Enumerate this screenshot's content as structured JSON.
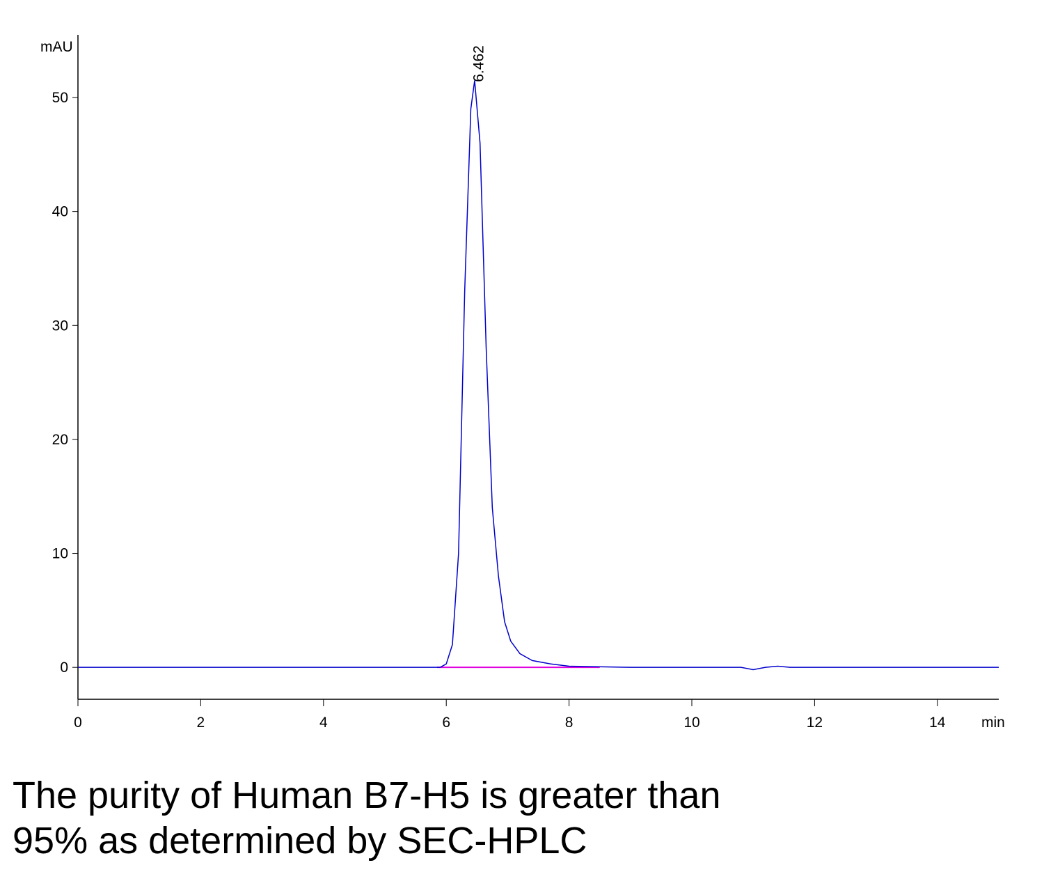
{
  "chart_data": {
    "type": "line",
    "y_label": "mAU",
    "x_label": "min",
    "x": [
      0,
      1,
      2,
      3,
      4,
      5,
      5.5,
      5.8,
      5.9,
      6.0,
      6.1,
      6.2,
      6.3,
      6.4,
      6.462,
      6.55,
      6.65,
      6.75,
      6.85,
      6.95,
      7.05,
      7.2,
      7.4,
      7.7,
      8,
      9,
      10,
      10.8,
      11.0,
      11.2,
      11.4,
      11.6,
      12,
      13,
      14,
      15
    ],
    "series": [
      {
        "color": "#0000cc",
        "values": [
          0,
          0,
          0,
          0,
          0,
          0,
          0,
          0,
          0,
          0.3,
          2,
          10,
          33,
          49,
          51.5,
          46,
          28,
          14,
          8,
          4,
          2.3,
          1.2,
          0.6,
          0.3,
          0.1,
          0,
          0,
          0,
          -0.2,
          0,
          0.1,
          0,
          0,
          0,
          0,
          0
        ]
      }
    ],
    "baseline": {
      "x": [
        5.85,
        8.5
      ],
      "values": [
        0,
        0
      ],
      "color": "#e000e0"
    },
    "annotations": [
      {
        "text": "6.462",
        "x": 6.462,
        "y": 51.5
      }
    ],
    "xlim": [
      0,
      15
    ],
    "ylim": [
      -2.8,
      55.5
    ],
    "xticks": [
      0,
      2,
      4,
      6,
      8,
      10,
      12,
      14
    ],
    "yticks": [
      0,
      10,
      20,
      30,
      40,
      50
    ]
  },
  "caption": [
    "The purity of Human B7-H5 is greater than",
    "95% as determined by SEC-HPLC"
  ]
}
